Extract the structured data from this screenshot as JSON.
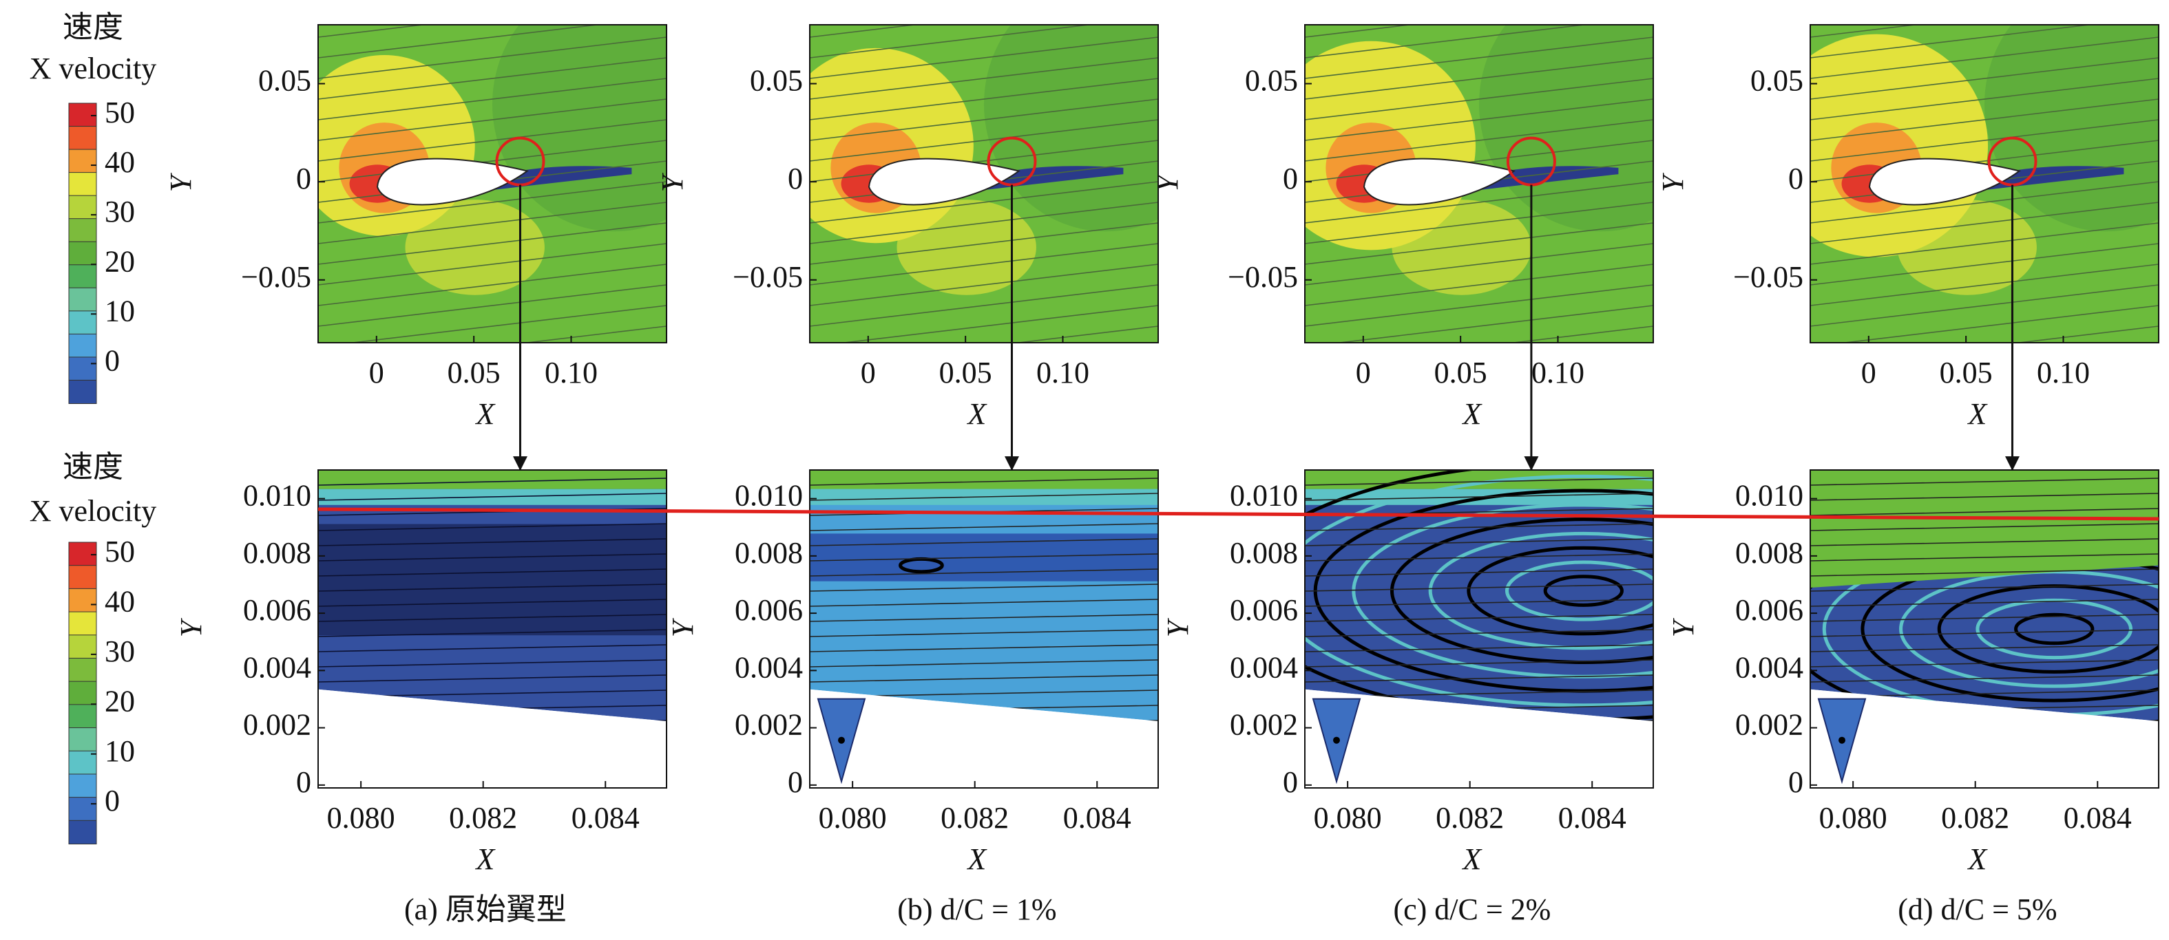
{
  "colorbars": [
    {
      "title": "速度",
      "subtitle": "X velocity",
      "lim": [
        -8,
        52.5
      ],
      "ticks": [
        50,
        40,
        30,
        20,
        10,
        0
      ],
      "colors": [
        "#d7262b",
        "#ee5a2a",
        "#f39a33",
        "#e5e53a",
        "#b6d43b",
        "#7cbb3c",
        "#5fae3b",
        "#4fb05a",
        "#6ac39a",
        "#5dc3c7",
        "#4ea2dc",
        "#3d6fc1",
        "#2f4ea0"
      ]
    },
    {
      "title": "速度",
      "subtitle": "X velocity",
      "lim": [
        -8,
        52.5
      ],
      "ticks": [
        50,
        40,
        30,
        20,
        10,
        0
      ],
      "colors": [
        "#d7262b",
        "#ee5a2a",
        "#f39a33",
        "#e5e53a",
        "#b6d43b",
        "#7cbb3c",
        "#5fae3b",
        "#4fb05a",
        "#6ac39a",
        "#5dc3c7",
        "#4ea2dc",
        "#3d6fc1",
        "#2f4ea0"
      ]
    }
  ],
  "chart_data": [
    {
      "type": "contour",
      "xlabel": "X",
      "ylabel": "Y",
      "xlim": [
        -0.03,
        0.149
      ],
      "ylim": [
        -0.082,
        0.08
      ],
      "xticks": [
        0,
        0.05,
        {
          "value": 0.1,
          "label": "0.10"
        }
      ],
      "yticks": [
        0.05,
        0,
        {
          "value": -0.05,
          "label": "−0.05"
        }
      ]
    },
    {
      "type": "contour",
      "xlabel": "X",
      "ylabel": "Y",
      "xlim": [
        -0.03,
        0.149
      ],
      "ylim": [
        -0.082,
        0.08
      ],
      "xticks": [
        0,
        0.05,
        {
          "value": 0.1,
          "label": "0.10"
        }
      ],
      "yticks": [
        0.05,
        0,
        {
          "value": -0.05,
          "label": "−0.05"
        }
      ]
    },
    {
      "type": "contour",
      "xlabel": "X",
      "ylabel": "Y",
      "xlim": [
        -0.03,
        0.149
      ],
      "ylim": [
        -0.082,
        0.08
      ],
      "xticks": [
        0,
        0.05,
        {
          "value": 0.1,
          "label": "0.10"
        }
      ],
      "yticks": [
        0.05,
        0,
        {
          "value": -0.05,
          "label": "−0.05"
        }
      ]
    },
    {
      "type": "contour",
      "xlabel": "X",
      "ylabel": "Y",
      "xlim": [
        -0.03,
        0.149
      ],
      "ylim": [
        -0.082,
        0.08
      ],
      "xticks": [
        0,
        0.05,
        {
          "value": 0.1,
          "label": "0.10"
        }
      ],
      "yticks": [
        0.05,
        0,
        {
          "value": -0.05,
          "label": "−0.05"
        }
      ]
    },
    {
      "type": "contour",
      "xlabel": "X",
      "ylabel": "Y",
      "caption": "(a) 原始翼型",
      "xlim": [
        0.0793,
        0.085
      ],
      "ylim": [
        -0.0001,
        0.011
      ],
      "xticks": [
        {
          "value": 0.08,
          "label": "0.080"
        },
        {
          "value": 0.082,
          "label": "0.082"
        },
        {
          "value": 0.084,
          "label": "0.084"
        }
      ],
      "yticks": [
        {
          "value": 0.01,
          "label": "0.010"
        },
        0.008,
        0.006,
        0.004,
        0.002,
        0
      ]
    },
    {
      "type": "contour",
      "xlabel": "X",
      "ylabel": "Y",
      "caption": "(b) d/C = 1%",
      "xlim": [
        0.0793,
        0.085
      ],
      "ylim": [
        -0.0001,
        0.011
      ],
      "xticks": [
        {
          "value": 0.08,
          "label": "0.080"
        },
        {
          "value": 0.082,
          "label": "0.082"
        },
        {
          "value": 0.084,
          "label": "0.084"
        }
      ],
      "yticks": [
        {
          "value": 0.01,
          "label": "0.010"
        },
        0.008,
        0.006,
        0.004,
        0.002,
        0
      ]
    },
    {
      "type": "contour",
      "xlabel": "X",
      "ylabel": "Y",
      "caption": "(c) d/C = 2%",
      "xlim": [
        0.0793,
        0.085
      ],
      "ylim": [
        -0.0001,
        0.011
      ],
      "xticks": [
        {
          "value": 0.08,
          "label": "0.080"
        },
        {
          "value": 0.082,
          "label": "0.082"
        },
        {
          "value": 0.084,
          "label": "0.084"
        }
      ],
      "yticks": [
        {
          "value": 0.01,
          "label": "0.010"
        },
        0.008,
        0.006,
        0.004,
        0.002,
        0
      ]
    },
    {
      "type": "contour",
      "xlabel": "X",
      "ylabel": "Y",
      "caption": "(d) d/C = 5%",
      "xlim": [
        0.0793,
        0.085
      ],
      "ylim": [
        -0.0001,
        0.011
      ],
      "xticks": [
        {
          "value": 0.08,
          "label": "0.080"
        },
        {
          "value": 0.082,
          "label": "0.082"
        },
        {
          "value": 0.084,
          "label": "0.084"
        }
      ],
      "yticks": [
        {
          "value": 0.01,
          "label": "0.010"
        },
        0.008,
        0.006,
        0.004,
        0.002,
        0
      ]
    }
  ]
}
